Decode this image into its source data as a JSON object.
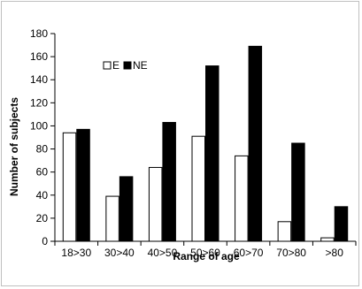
{
  "chart_data": {
    "type": "bar",
    "categories": [
      "18>30",
      "30>40",
      "40>50",
      "50>60",
      "60>70",
      "70>80",
      ">80"
    ],
    "series": [
      {
        "name": "E",
        "values": [
          94,
          39,
          64,
          91,
          74,
          17,
          3
        ],
        "color": "#ffffff",
        "stroke": "#000000"
      },
      {
        "name": "NE",
        "values": [
          97,
          56,
          103,
          152,
          169,
          85,
          30
        ],
        "color": "#000000",
        "stroke": "#000000"
      }
    ],
    "title": "",
    "xlabel": "Range  of age",
    "ylabel": "Number of subjects",
    "ylim": [
      0,
      180
    ],
    "yticks": [
      0,
      20,
      40,
      60,
      80,
      100,
      120,
      140,
      160,
      180
    ],
    "grid": false,
    "legend_position": "upper-left"
  }
}
